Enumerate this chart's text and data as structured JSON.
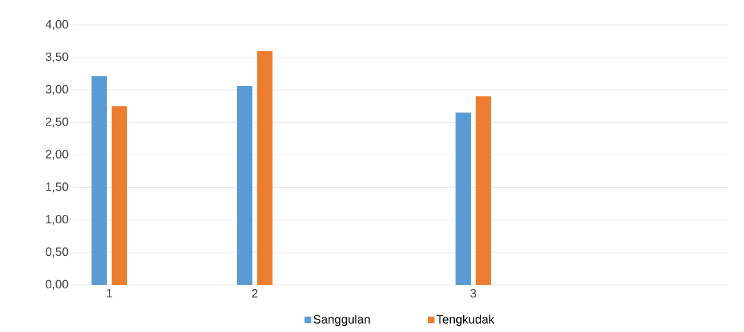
{
  "chart_data": {
    "type": "bar",
    "categories": [
      "1",
      null,
      "2",
      null,
      null,
      "3",
      null,
      null,
      null
    ],
    "series": [
      {
        "name": "Sanggulan",
        "color": "#5b9bd5",
        "values": [
          3.21,
          null,
          3.06,
          null,
          null,
          2.65,
          null,
          null,
          null
        ]
      },
      {
        "name": "Tengkudak",
        "color": "#ed7d31",
        "values": [
          2.75,
          null,
          3.6,
          null,
          null,
          2.9,
          null,
          null,
          null
        ]
      }
    ],
    "ylim": [
      0,
      4
    ],
    "yticks": [
      {
        "value": 0,
        "label": "0,00"
      },
      {
        "value": 0.5,
        "label": "0,50"
      },
      {
        "value": 1,
        "label": "1,00"
      },
      {
        "value": 1.5,
        "label": "1,50"
      },
      {
        "value": 2,
        "label": "2,00"
      },
      {
        "value": 2.5,
        "label": "2,50"
      },
      {
        "value": 3,
        "label": "3,00"
      },
      {
        "value": 3.5,
        "label": "3,50"
      },
      {
        "value": 4,
        "label": "4,00"
      }
    ],
    "grid": "y",
    "legend": "bottom"
  }
}
